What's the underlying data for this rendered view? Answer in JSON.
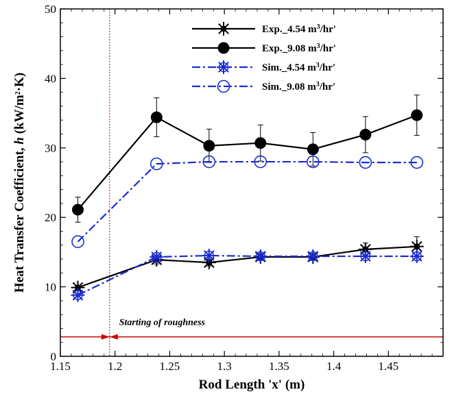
{
  "chart_data": {
    "type": "line",
    "xlabel": "Rod Length 'x' (m)",
    "ylabel_parts": [
      "Heat Transfer Coefficient, ",
      "h",
      " (kW/m",
      "2",
      "·K)"
    ],
    "xlim": [
      1.15,
      1.5
    ],
    "ylim": [
      0,
      50
    ],
    "xticks": [
      1.15,
      1.2,
      1.25,
      1.3,
      1.35,
      1.4,
      1.45
    ],
    "xtick_labels": [
      "1.15",
      "1.2",
      "1.25",
      "1.3",
      "1.35",
      "1.4",
      "1.45"
    ],
    "yticks": [
      0,
      10,
      20,
      30,
      40,
      50
    ],
    "ytick_labels": [
      "0",
      "10",
      "20",
      "30",
      "40",
      "50"
    ],
    "grid": false,
    "legend_position": "top-right",
    "x": [
      1.166,
      1.238,
      1.286,
      1.333,
      1.381,
      1.429,
      1.476
    ],
    "series": [
      {
        "name_parts": [
          "Exp._4.54 m",
          "3",
          "/hr'"
        ],
        "values": [
          9.9,
          13.9,
          13.5,
          14.3,
          14.3,
          15.4,
          15.8
        ],
        "errors": [
          0,
          0.6,
          0.5,
          0.5,
          0.5,
          0.9,
          1.4
        ],
        "style": "solid-black-asterisk",
        "color": "#000000"
      },
      {
        "name_parts": [
          "Exp._9.08 m",
          "3",
          "/hr'"
        ],
        "values": [
          21.1,
          34.4,
          30.3,
          30.7,
          29.8,
          31.9,
          34.7
        ],
        "errors": [
          1.8,
          2.8,
          2.4,
          2.6,
          2.4,
          2.6,
          2.9
        ],
        "style": "solid-black-filled-circle",
        "color": "#000000"
      },
      {
        "name_parts": [
          "Sim._4.54 m",
          "3",
          "/hr'"
        ],
        "values": [
          8.8,
          14.3,
          14.5,
          14.4,
          14.4,
          14.4,
          14.4
        ],
        "style": "dashdot-blue-open-asterisk",
        "color": "#1a2bd0"
      },
      {
        "name_parts": [
          "Sim._9.08 m",
          "3",
          "/hr'"
        ],
        "values": [
          16.5,
          27.7,
          28.0,
          28.0,
          28.0,
          27.9,
          27.9
        ],
        "style": "dashdot-blue-open-circle",
        "color": "#1a2bd0"
      }
    ],
    "roughness_start_x": 1.195,
    "roughness_line_y": 2.8,
    "annotation": "Starting of roughness",
    "annotation_color": "#cc0000"
  }
}
